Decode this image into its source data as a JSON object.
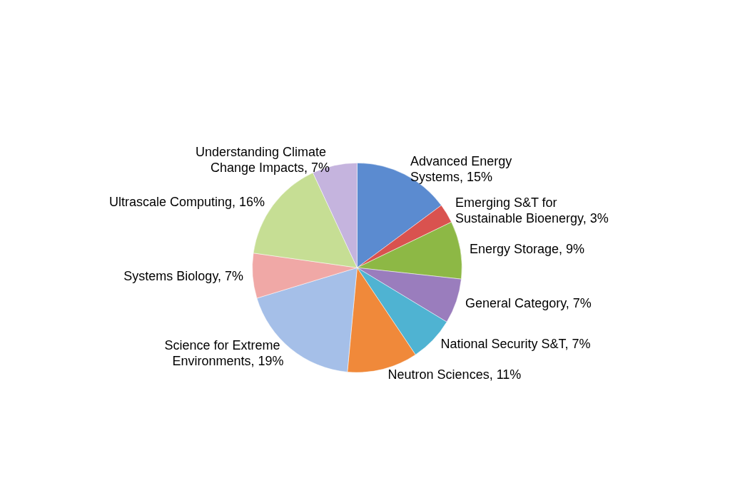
{
  "chart_data": {
    "type": "pie",
    "categories": [
      "Advanced Energy Systems",
      "Emerging S&T for Sustainable Bioenergy",
      "Energy Storage",
      "General Category",
      "National Security S&T",
      "Neutron Sciences",
      "Science for Extreme Environments",
      "Systems Biology",
      "Ultrascale Computing",
      "Understanding Climate Change Impacts"
    ],
    "values": [
      15,
      3,
      9,
      7,
      7,
      11,
      19,
      7,
      16,
      7
    ],
    "value_labels": [
      "15%",
      "3%",
      "9%",
      "7%",
      "7%",
      "11%",
      "19%",
      "7%",
      "16%",
      "7%"
    ],
    "colors": [
      "#5b8bd0",
      "#d9524f",
      "#8db845",
      "#9a7dbd",
      "#4fb3d2",
      "#f0893a",
      "#a5bfe8",
      "#f0a8a6",
      "#c6de94",
      "#c5b4de"
    ]
  }
}
